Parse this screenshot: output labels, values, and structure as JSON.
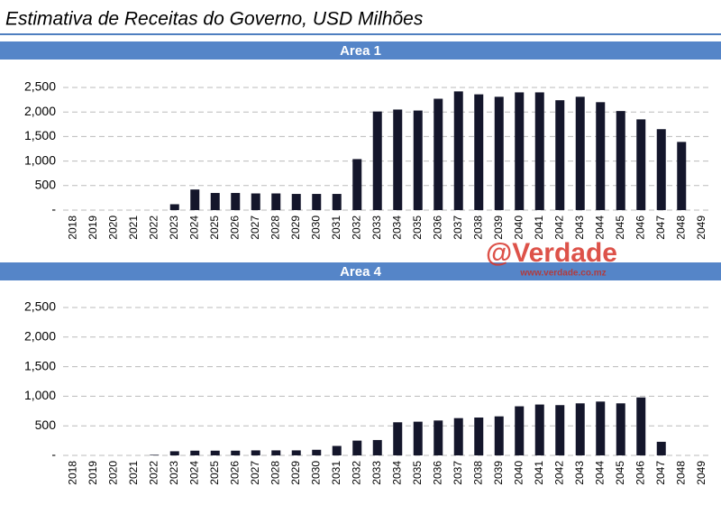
{
  "title": "Estimativa de Receitas do Governo, USD Milhões",
  "watermark": {
    "brand": "@Verdade",
    "url": "www.verdade.co.mz"
  },
  "chart_data": [
    {
      "type": "bar",
      "title": "Area 1",
      "color": "#14162b",
      "grid": true,
      "categories": [
        "2018",
        "2019",
        "2020",
        "2021",
        "2022",
        "2023",
        "2024",
        "2025",
        "2026",
        "2027",
        "2028",
        "2029",
        "2030",
        "2031",
        "2032",
        "2033",
        "2034",
        "2035",
        "2036",
        "2037",
        "2038",
        "2039",
        "2040",
        "2041",
        "2042",
        "2043",
        "2044",
        "2045",
        "2046",
        "2047",
        "2048",
        "2049"
      ],
      "values": [
        0,
        0,
        0,
        0,
        0,
        120,
        420,
        350,
        350,
        340,
        340,
        330,
        330,
        330,
        1040,
        2010,
        2050,
        2030,
        2270,
        2420,
        2360,
        2310,
        2400,
        2400,
        2240,
        2310,
        2200,
        2020,
        1850,
        1650,
        1390,
        0
      ],
      "ylim": [
        0,
        2500
      ],
      "yticks": [
        {
          "value": 0,
          "label": "-"
        },
        500,
        {
          "value": 1000,
          "label": "1,000"
        },
        {
          "value": 1500,
          "label": "1,500"
        },
        {
          "value": 2000,
          "label": "2,000"
        },
        {
          "value": 2500,
          "label": "2,500"
        }
      ]
    },
    {
      "type": "bar",
      "title": "Area 4",
      "color": "#14162b",
      "grid": true,
      "categories": [
        "2018",
        "2019",
        "2020",
        "2021",
        "2022",
        "2023",
        "2024",
        "2025",
        "2026",
        "2027",
        "2028",
        "2029",
        "2030",
        "2031",
        "2032",
        "2033",
        "2034",
        "2035",
        "2036",
        "2037",
        "2038",
        "2039",
        "2040",
        "2041",
        "2042",
        "2043",
        "2044",
        "2045",
        "2046",
        "2047",
        "2048",
        "2049"
      ],
      "values": [
        0,
        0,
        0,
        0,
        10,
        70,
        80,
        80,
        80,
        85,
        85,
        85,
        95,
        160,
        250,
        260,
        560,
        570,
        590,
        630,
        640,
        660,
        830,
        860,
        850,
        880,
        910,
        880,
        980,
        230,
        0,
        0
      ],
      "ylim": [
        0,
        2500
      ],
      "yticks": [
        {
          "value": 0,
          "label": "-"
        },
        500,
        {
          "value": 1000,
          "label": "1,000"
        },
        {
          "value": 1500,
          "label": "1,500"
        },
        {
          "value": 2000,
          "label": "2,000"
        },
        {
          "value": 2500,
          "label": "2,500"
        }
      ]
    }
  ]
}
